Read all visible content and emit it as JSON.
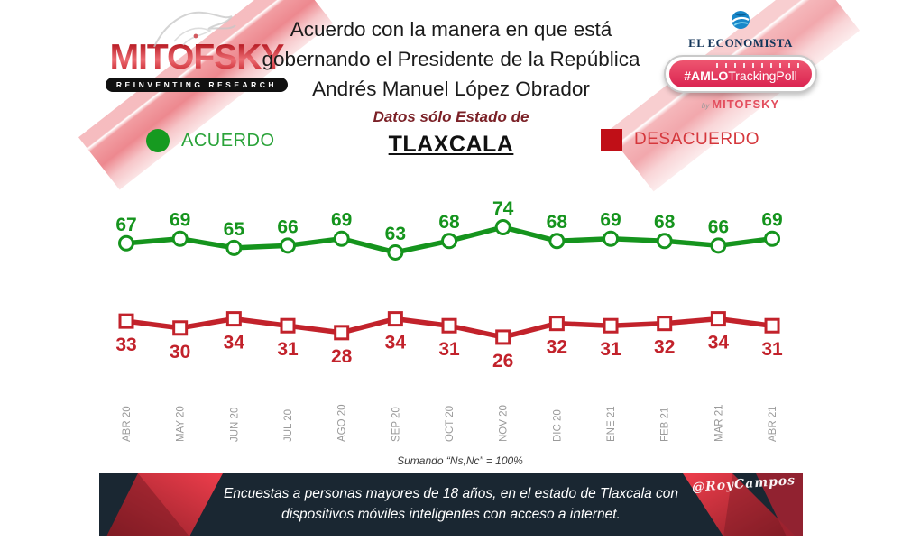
{
  "header": {
    "logo": {
      "name": "MITOFSKY",
      "tagline": "REINVENTING RESEARCH"
    },
    "title_lines": [
      "Acuerdo con la manera en que está",
      "gobernando el Presidente de la República",
      "Andrés Manuel López Obrador"
    ],
    "subtitle": "Datos sólo Estado de",
    "state": "TLAXCALA",
    "brand_right": {
      "publisher": "EL ECONOMISTA",
      "badge_hash": "#AMLO",
      "badge_rest": "TrackingPoll",
      "by": "by",
      "by_brand": "MITOFSKY"
    }
  },
  "legend": {
    "agree": "ACUERDO",
    "disagree": "DESACUERDO"
  },
  "colors": {
    "green_line": "#15941d",
    "green_label": "#118a18",
    "red_line": "#c2222b",
    "red_label": "#cc2026",
    "axis_gray": "#9a9a9a",
    "footer_navy": "#1a2732",
    "maroon": "#7b2127"
  },
  "chart_data": {
    "type": "line",
    "title": "Acuerdo con la manera en que está gobernando el Presidente de la República Andrés Manuel López Obrador — Datos sólo Estado de Tlaxcala",
    "categories": [
      "ABR 20",
      "MAY 20",
      "JUN 20",
      "JUL 20",
      "AGO 20",
      "SEP 20",
      "OCT 20",
      "NOV 20",
      "DIC 20",
      "ENE 21",
      "FEB 21",
      "MAR 21",
      "ABR 21"
    ],
    "series": [
      {
        "name": "ACUERDO",
        "marker": "circle",
        "color": "#15941d",
        "values": [
          67,
          69,
          65,
          66,
          69,
          63,
          68,
          74,
          68,
          69,
          68,
          66,
          69
        ]
      },
      {
        "name": "DESACUERDO",
        "marker": "square",
        "color": "#c2222b",
        "values": [
          33,
          30,
          34,
          31,
          28,
          34,
          31,
          26,
          32,
          31,
          32,
          34,
          31
        ]
      }
    ],
    "xlabel": "",
    "ylabel": "",
    "ylim": [
      20,
      80
    ],
    "grid": false,
    "legend_position": "top",
    "x_tick_rotation": -90,
    "data_labels": true
  },
  "footnote": "Sumando  “Ns,Nc”  = 100%",
  "footer": {
    "lines": [
      "Encuestas a personas mayores de 18 años, en el estado de Tlaxcala con",
      "dispositivos móviles inteligentes con acceso a internet."
    ],
    "signature": "@RoyCampos"
  }
}
